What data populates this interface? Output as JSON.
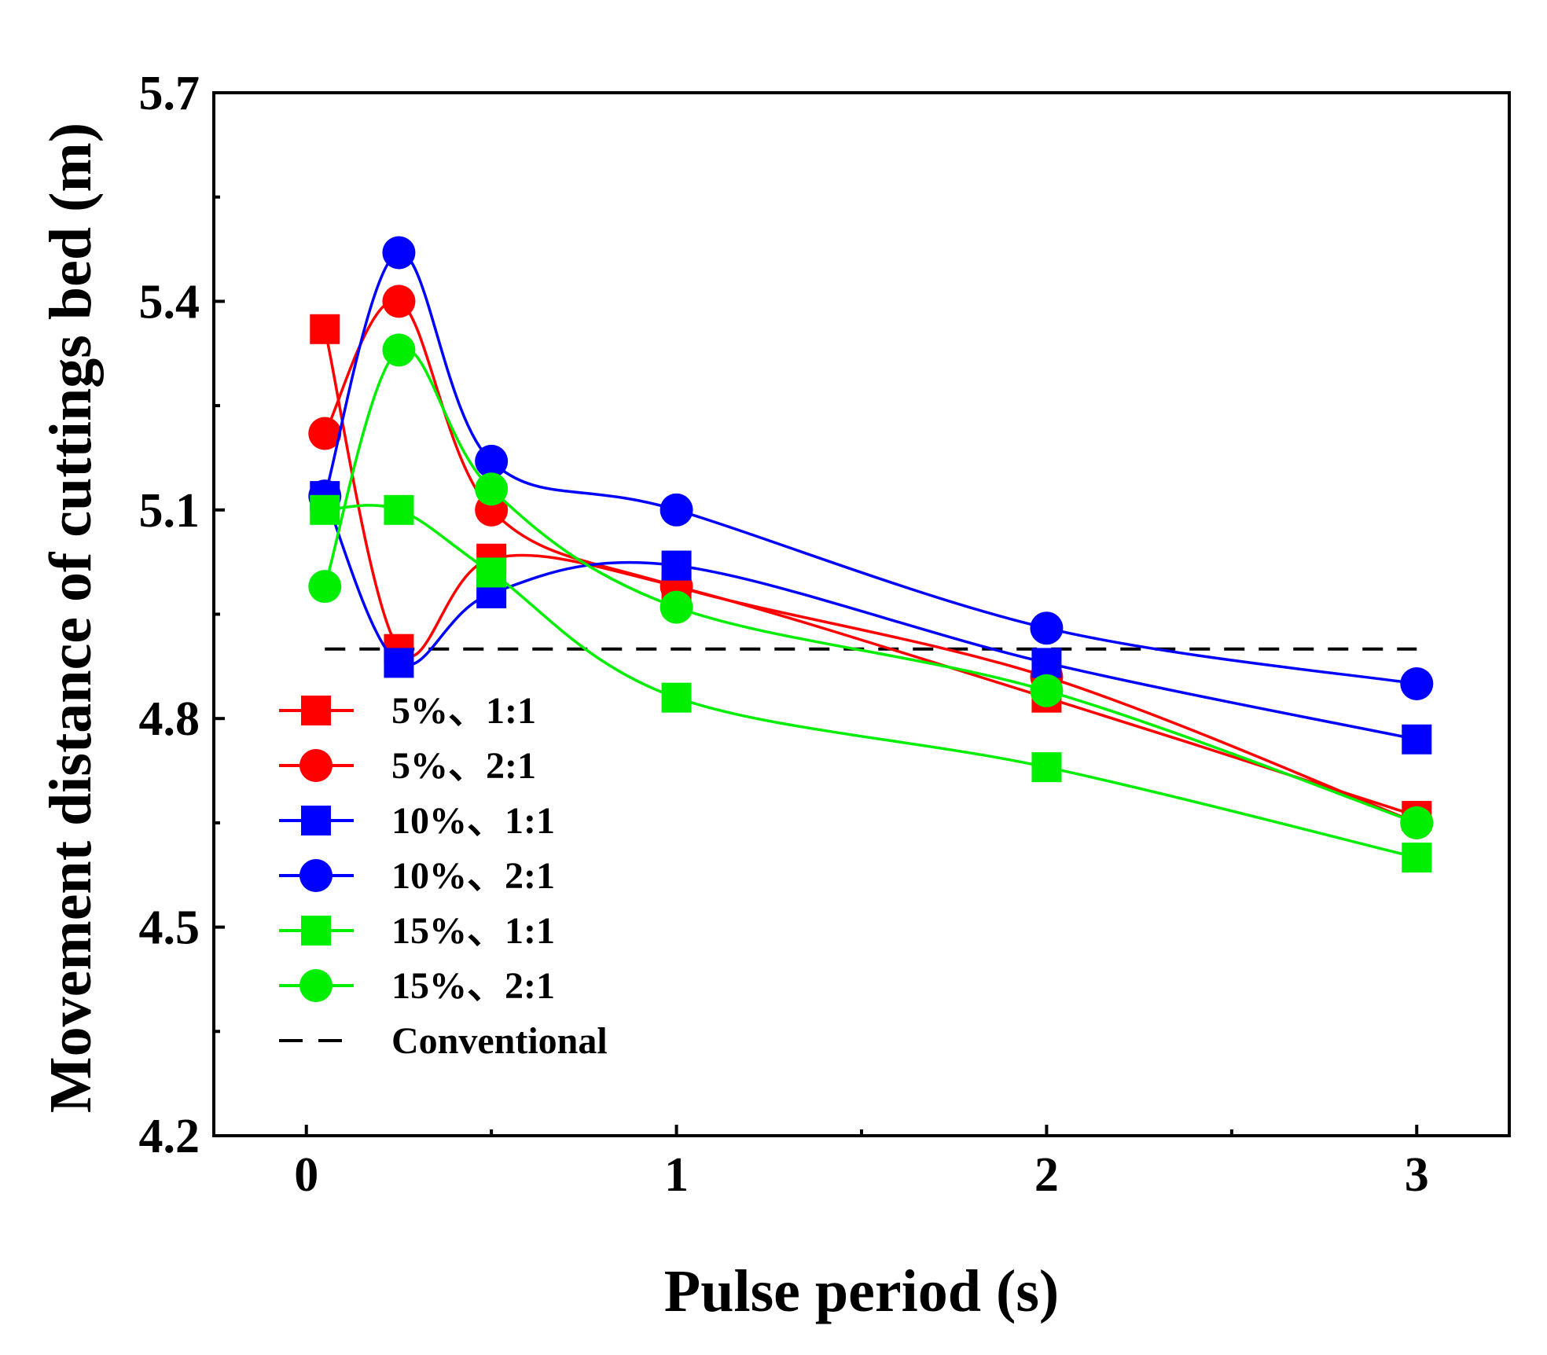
{
  "chart_data": {
    "type": "line",
    "title": "",
    "xlabel": "Pulse period (s)",
    "ylabel": "Movement distance of cuttings bed (m)",
    "xlim": [
      -0.25,
      3.25
    ],
    "ylim": [
      4.2,
      5.7
    ],
    "xticks": [
      "0",
      "1",
      "2",
      "3"
    ],
    "xtick_values": [
      0,
      1,
      2,
      3
    ],
    "yticks": [
      "4.2",
      "4.5",
      "4.8",
      "5.1",
      "5.4",
      "5.7"
    ],
    "ytick_values": [
      4.2,
      4.5,
      4.8,
      5.1,
      5.4,
      5.7
    ],
    "grid": false,
    "legend_position": "bottom-left",
    "x": [
      0.05,
      0.25,
      0.5,
      1,
      2,
      3
    ],
    "series": [
      {
        "name": "5%、1:1",
        "color": "#ff0000",
        "marker": "square",
        "values": [
          5.36,
          4.9,
          5.03,
          4.99,
          4.83,
          4.66
        ]
      },
      {
        "name": "5%、2:1",
        "color": "#ff0000",
        "marker": "circle",
        "values": [
          5.21,
          5.4,
          5.1,
          4.99,
          4.86,
          4.65
        ]
      },
      {
        "name": "10%、1:1",
        "color": "#0000ff",
        "marker": "square",
        "values": [
          5.12,
          4.88,
          4.98,
          5.02,
          4.88,
          4.77
        ]
      },
      {
        "name": "10%、2:1",
        "color": "#0000ff",
        "marker": "circle",
        "values": [
          5.12,
          5.47,
          5.17,
          5.1,
          4.93,
          4.85
        ]
      },
      {
        "name": "15%、1:1",
        "color": "#00ee00",
        "marker": "square",
        "values": [
          5.1,
          5.1,
          5.01,
          4.83,
          4.73,
          4.6
        ]
      },
      {
        "name": "15%、2:1",
        "color": "#00ee00",
        "marker": "circle",
        "values": [
          4.99,
          5.33,
          5.13,
          4.96,
          4.84,
          4.65
        ]
      }
    ],
    "reference_line": {
      "name": "Conventional",
      "y": 4.9,
      "color": "#000000",
      "style": "dashed"
    }
  }
}
